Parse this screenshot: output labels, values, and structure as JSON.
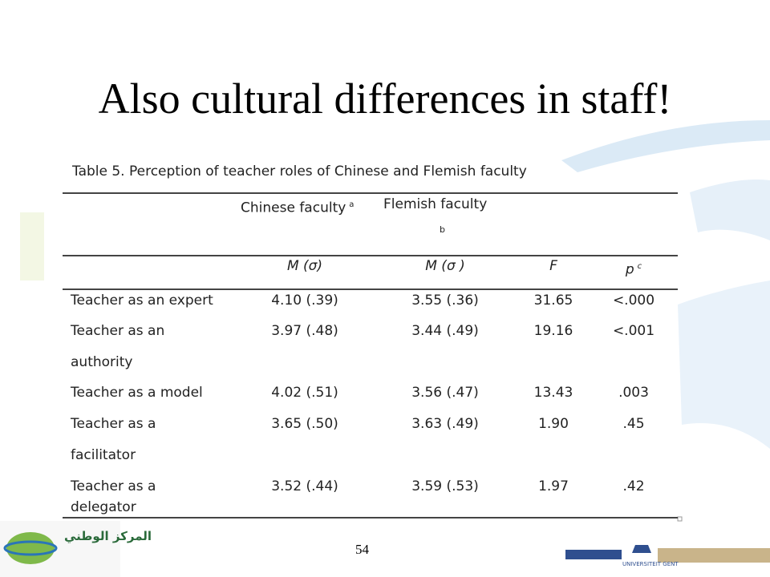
{
  "title": "Also cultural differences in staff!",
  "table": {
    "caption": "Table 5. Perception of teacher roles of Chinese and Flemish faculty",
    "group_headers": [
      {
        "text": "Chinese faculty",
        "note": "a"
      },
      {
        "text": "Flemish faculty",
        "note": "b"
      }
    ],
    "columns": [
      {
        "text": "M (σ)"
      },
      {
        "text": "M (σ )"
      },
      {
        "text": "F"
      },
      {
        "text": "p",
        "note": "c"
      }
    ],
    "rows": [
      {
        "label": [
          "Teacher as an expert"
        ],
        "cells": [
          "4.10 (.39)",
          "3.55 (.36)",
          "31.65",
          "<.000"
        ]
      },
      {
        "label": [
          "Teacher as an",
          "authority"
        ],
        "cells": [
          "3.97 (.48)",
          "3.44 (.49)",
          "19.16",
          "<.001"
        ]
      },
      {
        "label": [
          "Teacher as a model"
        ],
        "cells": [
          "4.02 (.51)",
          "3.56 (.47)",
          "13.43",
          ".003"
        ]
      },
      {
        "label": [
          "Teacher as a",
          "facilitator"
        ],
        "cells": [
          "3.65 (.50)",
          "3.63 (.49)",
          "1.90",
          ".45"
        ]
      },
      {
        "label": [
          "Teacher as a",
          "delegator"
        ],
        "cells": [
          "3.52 (.44)",
          "3.59 (.53)",
          "1.97",
          ".42"
        ]
      }
    ]
  },
  "page_number": "54",
  "logos": [
    "المركز الوطني",
    "UNIVERSITEIT GENT"
  ]
}
